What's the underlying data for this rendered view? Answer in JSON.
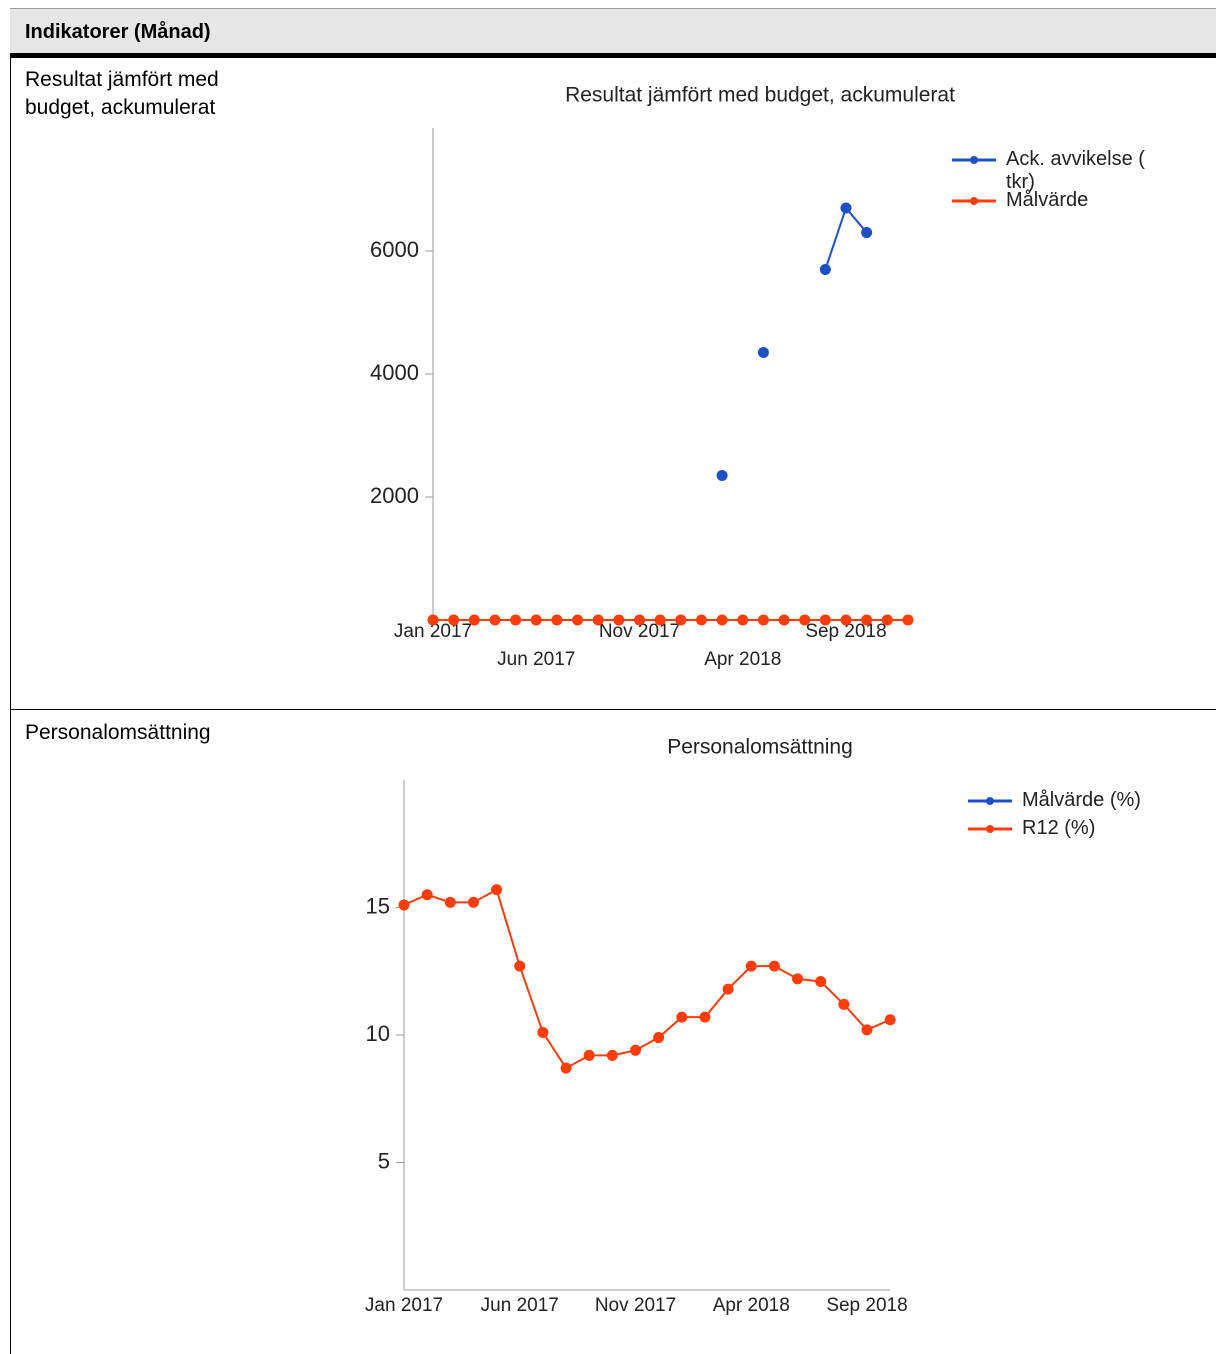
{
  "header": {
    "title": "Indikatorer (Månad)"
  },
  "rows": [
    {
      "label": "Resultat jämfört med budget, ackumulerat"
    },
    {
      "label": "Personalomsättning"
    }
  ],
  "chart_data": [
    {
      "type": "line",
      "title": "Resultat jämfört med budget, ackumulerat",
      "categories": [
        "Jan 2017",
        null,
        null,
        null,
        null,
        "Jun 2017",
        null,
        null,
        null,
        null,
        "Nov 2017",
        null,
        null,
        null,
        null,
        "Apr 2018",
        null,
        null,
        null,
        null,
        "Sep 2018",
        null,
        null,
        null
      ],
      "series": [
        {
          "name": "Ack. avvikelse ( tkr)",
          "color": "#1f4fc7",
          "values": [
            null,
            null,
            null,
            null,
            null,
            null,
            null,
            null,
            null,
            null,
            null,
            null,
            null,
            null,
            2350,
            null,
            4350,
            null,
            null,
            5700,
            6700,
            6300,
            null,
            null
          ]
        },
        {
          "name": "Målvärde",
          "color": "#ff3d0a",
          "values": [
            0,
            0,
            0,
            0,
            0,
            0,
            0,
            0,
            0,
            0,
            0,
            0,
            0,
            0,
            0,
            0,
            0,
            0,
            0,
            0,
            0,
            0,
            0,
            0
          ]
        }
      ],
      "ylim": [
        0,
        8000
      ],
      "yticks": [
        2000,
        4000,
        6000
      ],
      "legend": "right"
    },
    {
      "type": "line",
      "title": "Personalomsättning",
      "categories": [
        "Jan 2017",
        null,
        null,
        null,
        null,
        "Jun 2017",
        null,
        null,
        null,
        null,
        "Nov 2017",
        null,
        null,
        null,
        null,
        "Apr 2018",
        null,
        null,
        null,
        null,
        "Sep 2018",
        null
      ],
      "series": [
        {
          "name": "Målvärde (%)",
          "color": "#1f4fc7",
          "values": [
            null,
            null,
            null,
            null,
            null,
            null,
            null,
            null,
            null,
            null,
            null,
            null,
            null,
            null,
            null,
            null,
            null,
            null,
            null,
            null,
            null,
            null
          ]
        },
        {
          "name": "R12 (%)",
          "color": "#ff3d0a",
          "values": [
            15.1,
            15.5,
            15.2,
            15.2,
            15.7,
            12.7,
            10.1,
            8.7,
            9.2,
            9.2,
            9.4,
            9.9,
            10.7,
            10.7,
            11.8,
            12.7,
            12.7,
            12.2,
            12.1,
            11.2,
            10.2,
            10.6
          ]
        }
      ],
      "ylim": [
        0,
        20
      ],
      "yticks": [
        5,
        10,
        15
      ],
      "legend": "right"
    }
  ]
}
